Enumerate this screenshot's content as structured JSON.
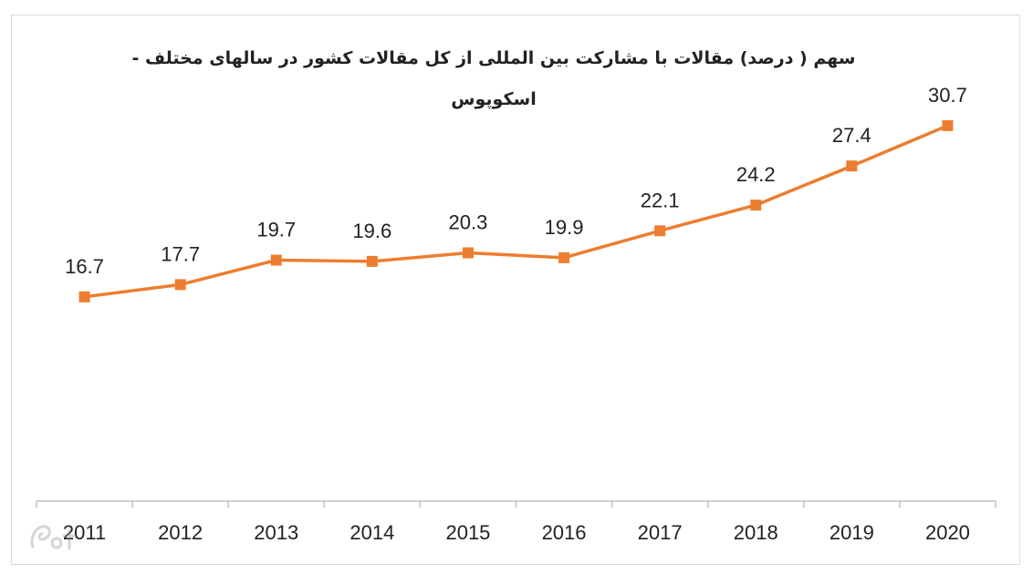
{
  "chart_data": {
    "type": "line",
    "title_lines": [
      "سهم ( درصد) مقالات با مشارکت بین المللی از کل مقالات کشور در سالهای مختلف -",
      "اسکوپوس"
    ],
    "categories": [
      "2011",
      "2012",
      "2013",
      "2014",
      "2015",
      "2016",
      "2017",
      "2018",
      "2019",
      "2020"
    ],
    "series": [
      {
        "values": [
          16.7,
          17.7,
          19.7,
          19.6,
          20.3,
          19.9,
          22.1,
          24.2,
          27.4,
          30.7
        ],
        "labels": [
          "16.7",
          "17.7",
          "19.7",
          "19.6",
          "20.3",
          "19.9",
          "22.1",
          "24.2",
          "27.4",
          "30.7"
        ],
        "color": "#ed7d31",
        "marker": "square"
      }
    ],
    "ylim": [
      0,
      33
    ],
    "xlabel": "",
    "ylabel": "",
    "grid": false,
    "legend": "none",
    "axis_color": "#bfbfbf"
  },
  "watermark": {
    "icon": "watermark-logo-icon"
  }
}
